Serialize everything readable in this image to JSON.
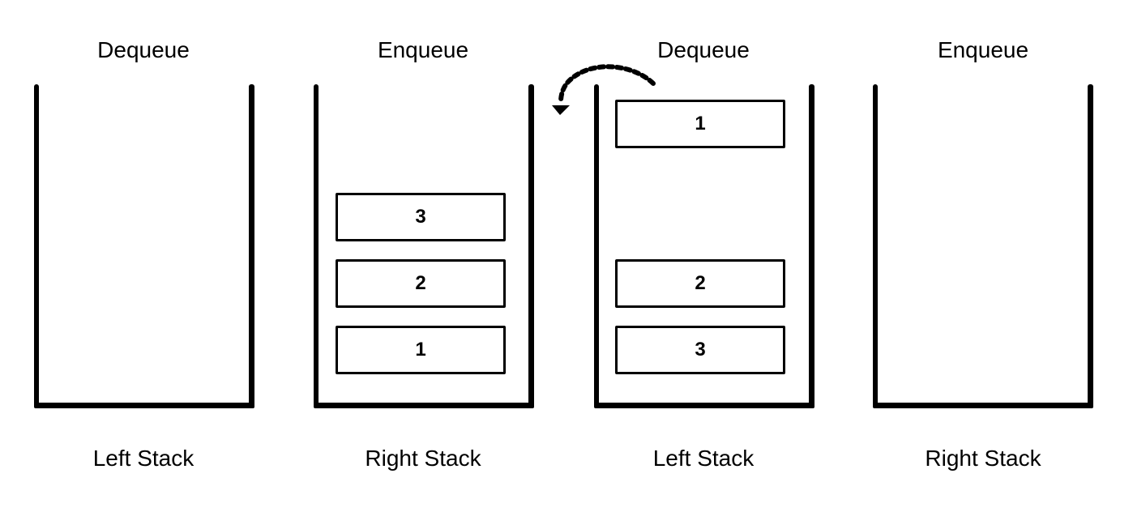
{
  "panels": [
    {
      "operation": "Dequeue",
      "stack_label": "Left Stack",
      "blocks": []
    },
    {
      "operation": "Enqueue",
      "stack_label": "Right Stack",
      "blocks": [
        "3",
        "2",
        "1"
      ]
    },
    {
      "operation": "Dequeue",
      "stack_label": "Left Stack",
      "blocks": [
        "1",
        "2",
        "3"
      ]
    },
    {
      "operation": "Enqueue",
      "stack_label": "Right Stack",
      "blocks": []
    }
  ],
  "arrow": {
    "style": "dotted",
    "direction": "from-left-stack-top-to-right-stack"
  }
}
